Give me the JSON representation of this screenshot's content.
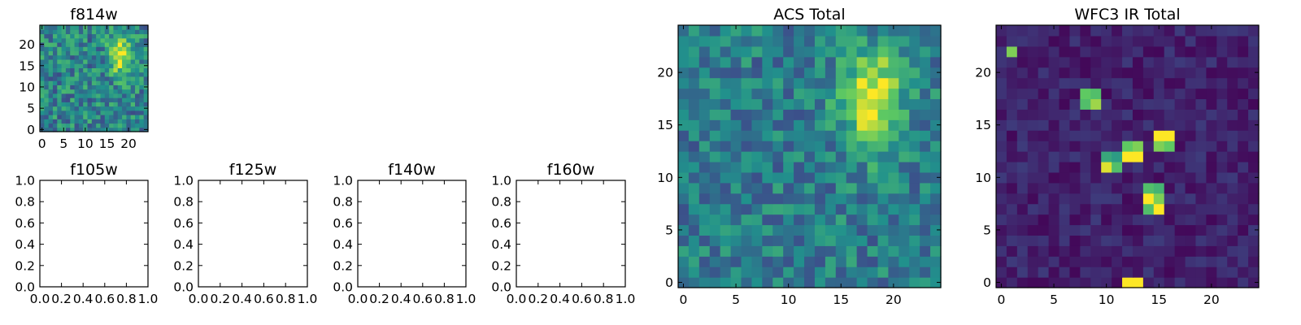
{
  "colormap": [
    "#440154",
    "#3b528b",
    "#21918c",
    "#5ec962",
    "#fde725"
  ],
  "chart_data": [
    {
      "type": "heatmap",
      "title": "f814w",
      "grid_size": [
        25,
        25
      ],
      "xlim": [
        -0.5,
        24.5
      ],
      "ylim": [
        -0.5,
        24.5
      ],
      "xticks": [
        0,
        5,
        10,
        15,
        20
      ],
      "yticks": [
        0,
        5,
        10,
        15,
        20
      ],
      "background_level": 0.45,
      "noise": 0.22,
      "sources": [
        {
          "x": 18,
          "y": 17.5,
          "sx": 1.8,
          "sy": 3.0,
          "amp": 0.6
        }
      ],
      "seed": 11
    },
    {
      "type": "heatmap",
      "title": "f105w",
      "empty": true,
      "xlim": [
        0.0,
        1.0
      ],
      "ylim": [
        0.0,
        1.0
      ],
      "xticks": [
        "0.0",
        "0.2",
        "0.4",
        "0.6",
        "0.8",
        "1.0"
      ],
      "yticks": [
        "0.0",
        "0.2",
        "0.4",
        "0.6",
        "0.8",
        "1.0"
      ]
    },
    {
      "type": "heatmap",
      "title": "f125w",
      "empty": true,
      "xlim": [
        0.0,
        1.0
      ],
      "ylim": [
        0.0,
        1.0
      ],
      "xticks": [
        "0.0",
        "0.2",
        "0.4",
        "0.6",
        "0.8",
        "1.0"
      ],
      "yticks": [
        "0.0",
        "0.2",
        "0.4",
        "0.6",
        "0.8",
        "1.0"
      ]
    },
    {
      "type": "heatmap",
      "title": "f140w",
      "empty": true,
      "xlim": [
        0.0,
        1.0
      ],
      "ylim": [
        0.0,
        1.0
      ],
      "xticks": [
        "0.0",
        "0.2",
        "0.4",
        "0.6",
        "0.8",
        "1.0"
      ],
      "yticks": [
        "0.0",
        "0.2",
        "0.4",
        "0.6",
        "0.8",
        "1.0"
      ]
    },
    {
      "type": "heatmap",
      "title": "f160w",
      "empty": true,
      "xlim": [
        0.0,
        1.0
      ],
      "ylim": [
        0.0,
        1.0
      ],
      "xticks": [
        "0.0",
        "0.2",
        "0.4",
        "0.6",
        "0.8",
        "1.0"
      ],
      "yticks": [
        "0.0",
        "0.2",
        "0.4",
        "0.6",
        "0.8",
        "1.0"
      ]
    },
    {
      "type": "heatmap",
      "title": "ACS Total",
      "grid_size": [
        25,
        25
      ],
      "xlim": [
        -0.5,
        24.5
      ],
      "ylim": [
        -0.5,
        24.5
      ],
      "xticks": [
        0,
        5,
        10,
        15,
        20
      ],
      "yticks": [
        0,
        5,
        10,
        15,
        20
      ],
      "background_level": 0.42,
      "noise": 0.18,
      "sources": [
        {
          "x": 18,
          "y": 17.5,
          "sx": 2.0,
          "sy": 3.2,
          "amp": 0.6
        }
      ],
      "seed": 23
    },
    {
      "type": "heatmap",
      "title": "WFC3 IR Total",
      "grid_size": [
        25,
        25
      ],
      "xlim": [
        -0.5,
        24.5
      ],
      "ylim": [
        -0.5,
        24.5
      ],
      "xticks": [
        0,
        5,
        10,
        15,
        20
      ],
      "yticks": [
        0,
        5,
        10,
        15,
        20
      ],
      "background_level": 0.1,
      "noise": 0.08,
      "bright_pixels": [
        {
          "x": 1,
          "y": 22,
          "v": 0.8
        },
        {
          "x": 8,
          "y": 18,
          "v": 0.75
        },
        {
          "x": 9,
          "y": 18,
          "v": 0.7
        },
        {
          "x": 8,
          "y": 17,
          "v": 0.7
        },
        {
          "x": 9,
          "y": 17,
          "v": 0.85
        },
        {
          "x": 15,
          "y": 14,
          "v": 1.0
        },
        {
          "x": 16,
          "y": 14,
          "v": 1.0
        },
        {
          "x": 15,
          "y": 13,
          "v": 0.8
        },
        {
          "x": 16,
          "y": 13,
          "v": 0.75
        },
        {
          "x": 12,
          "y": 13,
          "v": 0.75
        },
        {
          "x": 13,
          "y": 13,
          "v": 0.8
        },
        {
          "x": 10,
          "y": 12,
          "v": 0.6
        },
        {
          "x": 11,
          "y": 12,
          "v": 0.55
        },
        {
          "x": 12,
          "y": 12,
          "v": 1.0
        },
        {
          "x": 13,
          "y": 12,
          "v": 1.0
        },
        {
          "x": 10,
          "y": 11,
          "v": 0.95
        },
        {
          "x": 11,
          "y": 11,
          "v": 0.7
        },
        {
          "x": 14,
          "y": 9,
          "v": 0.7
        },
        {
          "x": 15,
          "y": 9,
          "v": 0.65
        },
        {
          "x": 14,
          "y": 8,
          "v": 1.0
        },
        {
          "x": 15,
          "y": 8,
          "v": 0.8
        },
        {
          "x": 14,
          "y": 7,
          "v": 0.7
        },
        {
          "x": 15,
          "y": 7,
          "v": 1.0
        },
        {
          "x": 12,
          "y": 0,
          "v": 1.0
        },
        {
          "x": 13,
          "y": 0,
          "v": 1.0
        }
      ],
      "seed": 37
    }
  ]
}
